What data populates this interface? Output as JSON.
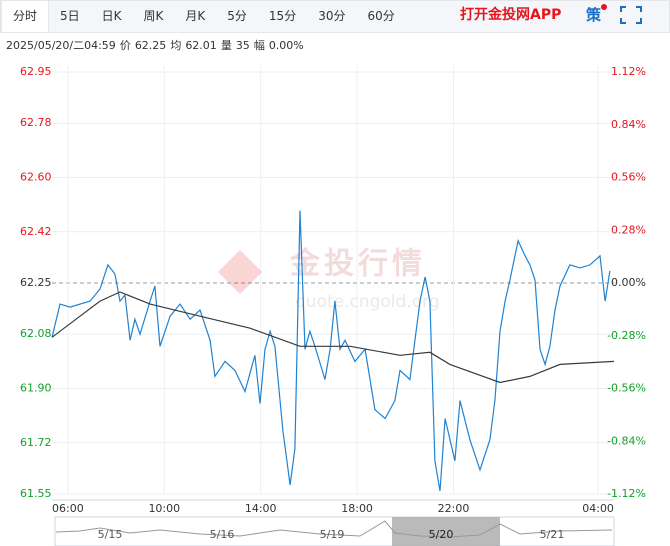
{
  "tabs": [
    "分时",
    "5日",
    "日K",
    "周K",
    "月K",
    "5分",
    "15分",
    "30分",
    "60分"
  ],
  "active_tab": 0,
  "app_link": "打开金投网APP",
  "strategy_button": "策",
  "info": [
    "2025/05/20/二04:59",
    "价",
    "62.25",
    "均",
    "62.01",
    "量",
    "35",
    "幅",
    "0.00%"
  ],
  "watermark": {
    "name": "金投行情",
    "url": "quote.cngold.org"
  },
  "navigator": {
    "dates": [
      "5/15",
      "5/16",
      "5/19",
      "5/20",
      "5/21"
    ],
    "selected": 3
  },
  "chart_data": {
    "type": "line",
    "baseline": 62.25,
    "up_color": "#e4161d",
    "down_color": "#13a02a",
    "grid": true,
    "xlim": [
      5.34,
      28.66
    ],
    "xticks": [
      {
        "value": 6,
        "label": "06:00"
      },
      {
        "value": 10,
        "label": "10:00"
      },
      {
        "value": 14,
        "label": "14:00"
      },
      {
        "value": 18,
        "label": "18:00"
      },
      {
        "value": 22,
        "label": "22:00"
      },
      {
        "value": 28,
        "label": "04:00"
      }
    ],
    "ylim": [
      61.55,
      62.95
    ],
    "yticks": [
      62.95,
      62.78,
      {
        "value": 62.6,
        "label": "62.60"
      },
      62.42,
      62.25,
      62.08,
      {
        "value": 61.9,
        "label": "61.90"
      },
      61.72,
      61.55
    ],
    "y2lim": [
      -1.12,
      1.12
    ],
    "y2ticks": [
      {
        "value": 1.12,
        "label": "1.12%"
      },
      {
        "value": 0.84,
        "label": "0.84%"
      },
      {
        "value": 0.56,
        "label": "0.56%"
      },
      {
        "value": 0.28,
        "label": "0.28%"
      },
      {
        "value": 0,
        "label": "0.00%"
      },
      {
        "value": -0.28,
        "label": "-0.28%"
      },
      {
        "value": -0.56,
        "label": "-0.56%"
      },
      {
        "value": -0.84,
        "label": "-0.84%"
      },
      {
        "value": -1.12,
        "label": "-1.12%"
      }
    ],
    "series": [
      {
        "color": "#1f82d2",
        "x": [
          5.34,
          5.67,
          6.09,
          6.92,
          7.33,
          7.66,
          7.95,
          8.16,
          8.37,
          8.58,
          8.78,
          8.99,
          9.41,
          9.61,
          9.82,
          10.24,
          10.65,
          11.07,
          11.48,
          11.9,
          12.1,
          12.52,
          12.93,
          13.35,
          13.76,
          13.97,
          14.18,
          14.39,
          14.59,
          14.92,
          15.22,
          15.42,
          15.63,
          15.84,
          16.04,
          16.25,
          16.67,
          16.88,
          17.08,
          17.29,
          17.5,
          17.91,
          18.33,
          18.74,
          19.16,
          19.57,
          19.78,
          20.19,
          20.61,
          20.82,
          21.02,
          21.23,
          21.44,
          21.65,
          22.06,
          22.27,
          22.68,
          23.1,
          23.51,
          23.72,
          23.93,
          24.14,
          24.34,
          24.68,
          24.97,
          25.17,
          25.38,
          25.59,
          25.8,
          26.0,
          26.21,
          26.42,
          26.83,
          27.25,
          27.66,
          28.08,
          28.29,
          28.49
        ],
        "values": [
          62.07,
          62.18,
          62.17,
          62.19,
          62.23,
          62.31,
          62.28,
          62.19,
          62.21,
          62.06,
          62.13,
          62.08,
          62.19,
          62.24,
          62.04,
          62.14,
          62.18,
          62.13,
          62.16,
          62.06,
          61.94,
          61.99,
          61.96,
          61.89,
          62.01,
          61.85,
          62.03,
          62.09,
          62.04,
          61.76,
          61.58,
          61.7,
          62.49,
          62.03,
          62.09,
          62.04,
          61.93,
          62.03,
          62.19,
          62.03,
          62.06,
          61.99,
          62.03,
          61.83,
          61.8,
          61.86,
          61.96,
          61.93,
          62.19,
          62.27,
          62.19,
          61.66,
          61.56,
          61.8,
          61.66,
          61.86,
          61.73,
          61.63,
          61.73,
          61.86,
          62.09,
          62.19,
          62.26,
          62.39,
          62.34,
          62.31,
          62.26,
          62.03,
          61.98,
          62.04,
          62.16,
          62.24,
          62.31,
          62.3,
          62.31,
          62.34,
          62.19,
          62.29
        ]
      },
      {
        "color": "#3a3a3a",
        "x": [
          5.34,
          6.5,
          7.33,
          8.16,
          9.41,
          11.48,
          13.56,
          15.63,
          17.71,
          19.78,
          21.02,
          21.85,
          23.93,
          25.17,
          26.42,
          28.66
        ],
        "values": [
          62.07,
          62.14,
          62.19,
          62.22,
          62.18,
          62.14,
          62.1,
          62.04,
          62.04,
          62.01,
          62.02,
          61.98,
          61.92,
          61.94,
          61.98,
          61.99
        ]
      }
    ]
  }
}
